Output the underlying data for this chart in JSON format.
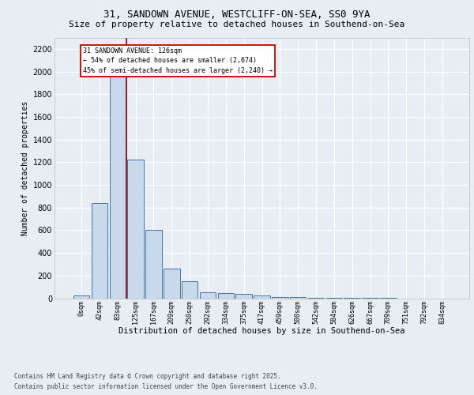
{
  "title_line1": "31, SANDOWN AVENUE, WESTCLIFF-ON-SEA, SS0 9YA",
  "title_line2": "Size of property relative to detached houses in Southend-on-Sea",
  "xlabel": "Distribution of detached houses by size in Southend-on-Sea",
  "ylabel": "Number of detached properties",
  "bar_labels": [
    "0sqm",
    "42sqm",
    "83sqm",
    "125sqm",
    "167sqm",
    "209sqm",
    "250sqm",
    "292sqm",
    "334sqm",
    "375sqm",
    "417sqm",
    "459sqm",
    "500sqm",
    "542sqm",
    "584sqm",
    "626sqm",
    "667sqm",
    "709sqm",
    "751sqm",
    "792sqm",
    "834sqm"
  ],
  "bar_values": [
    25,
    840,
    2000,
    1220,
    600,
    260,
    150,
    55,
    45,
    35,
    22,
    10,
    8,
    5,
    3,
    2,
    1,
    1,
    0,
    0,
    0
  ],
  "bar_color": "#c9d9ec",
  "bar_edge_color": "#4472a8",
  "property_line_label": "31 SANDOWN AVENUE: 126sqm",
  "annotation_line2": "← 54% of detached houses are smaller (2,674)",
  "annotation_line3": "45% of semi-detached houses are larger (2,240) →",
  "annotation_box_color": "#ffffff",
  "annotation_box_edge": "#cc0000",
  "vline_color": "#990000",
  "ylim": [
    0,
    2300
  ],
  "yticks": [
    0,
    200,
    400,
    600,
    800,
    1000,
    1200,
    1400,
    1600,
    1800,
    2000,
    2200
  ],
  "footer_line1": "Contains HM Land Registry data © Crown copyright and database right 2025.",
  "footer_line2": "Contains public sector information licensed under the Open Government Licence v3.0.",
  "bg_color": "#e8edf4",
  "plot_bg_color": "#e8edf4",
  "grid_color": "#ffffff",
  "title_fontsize": 9,
  "subtitle_fontsize": 8,
  "ylabel_fontsize": 7,
  "xlabel_fontsize": 7.5,
  "ytick_fontsize": 7,
  "xtick_fontsize": 6,
  "footer_fontsize": 5.5
}
